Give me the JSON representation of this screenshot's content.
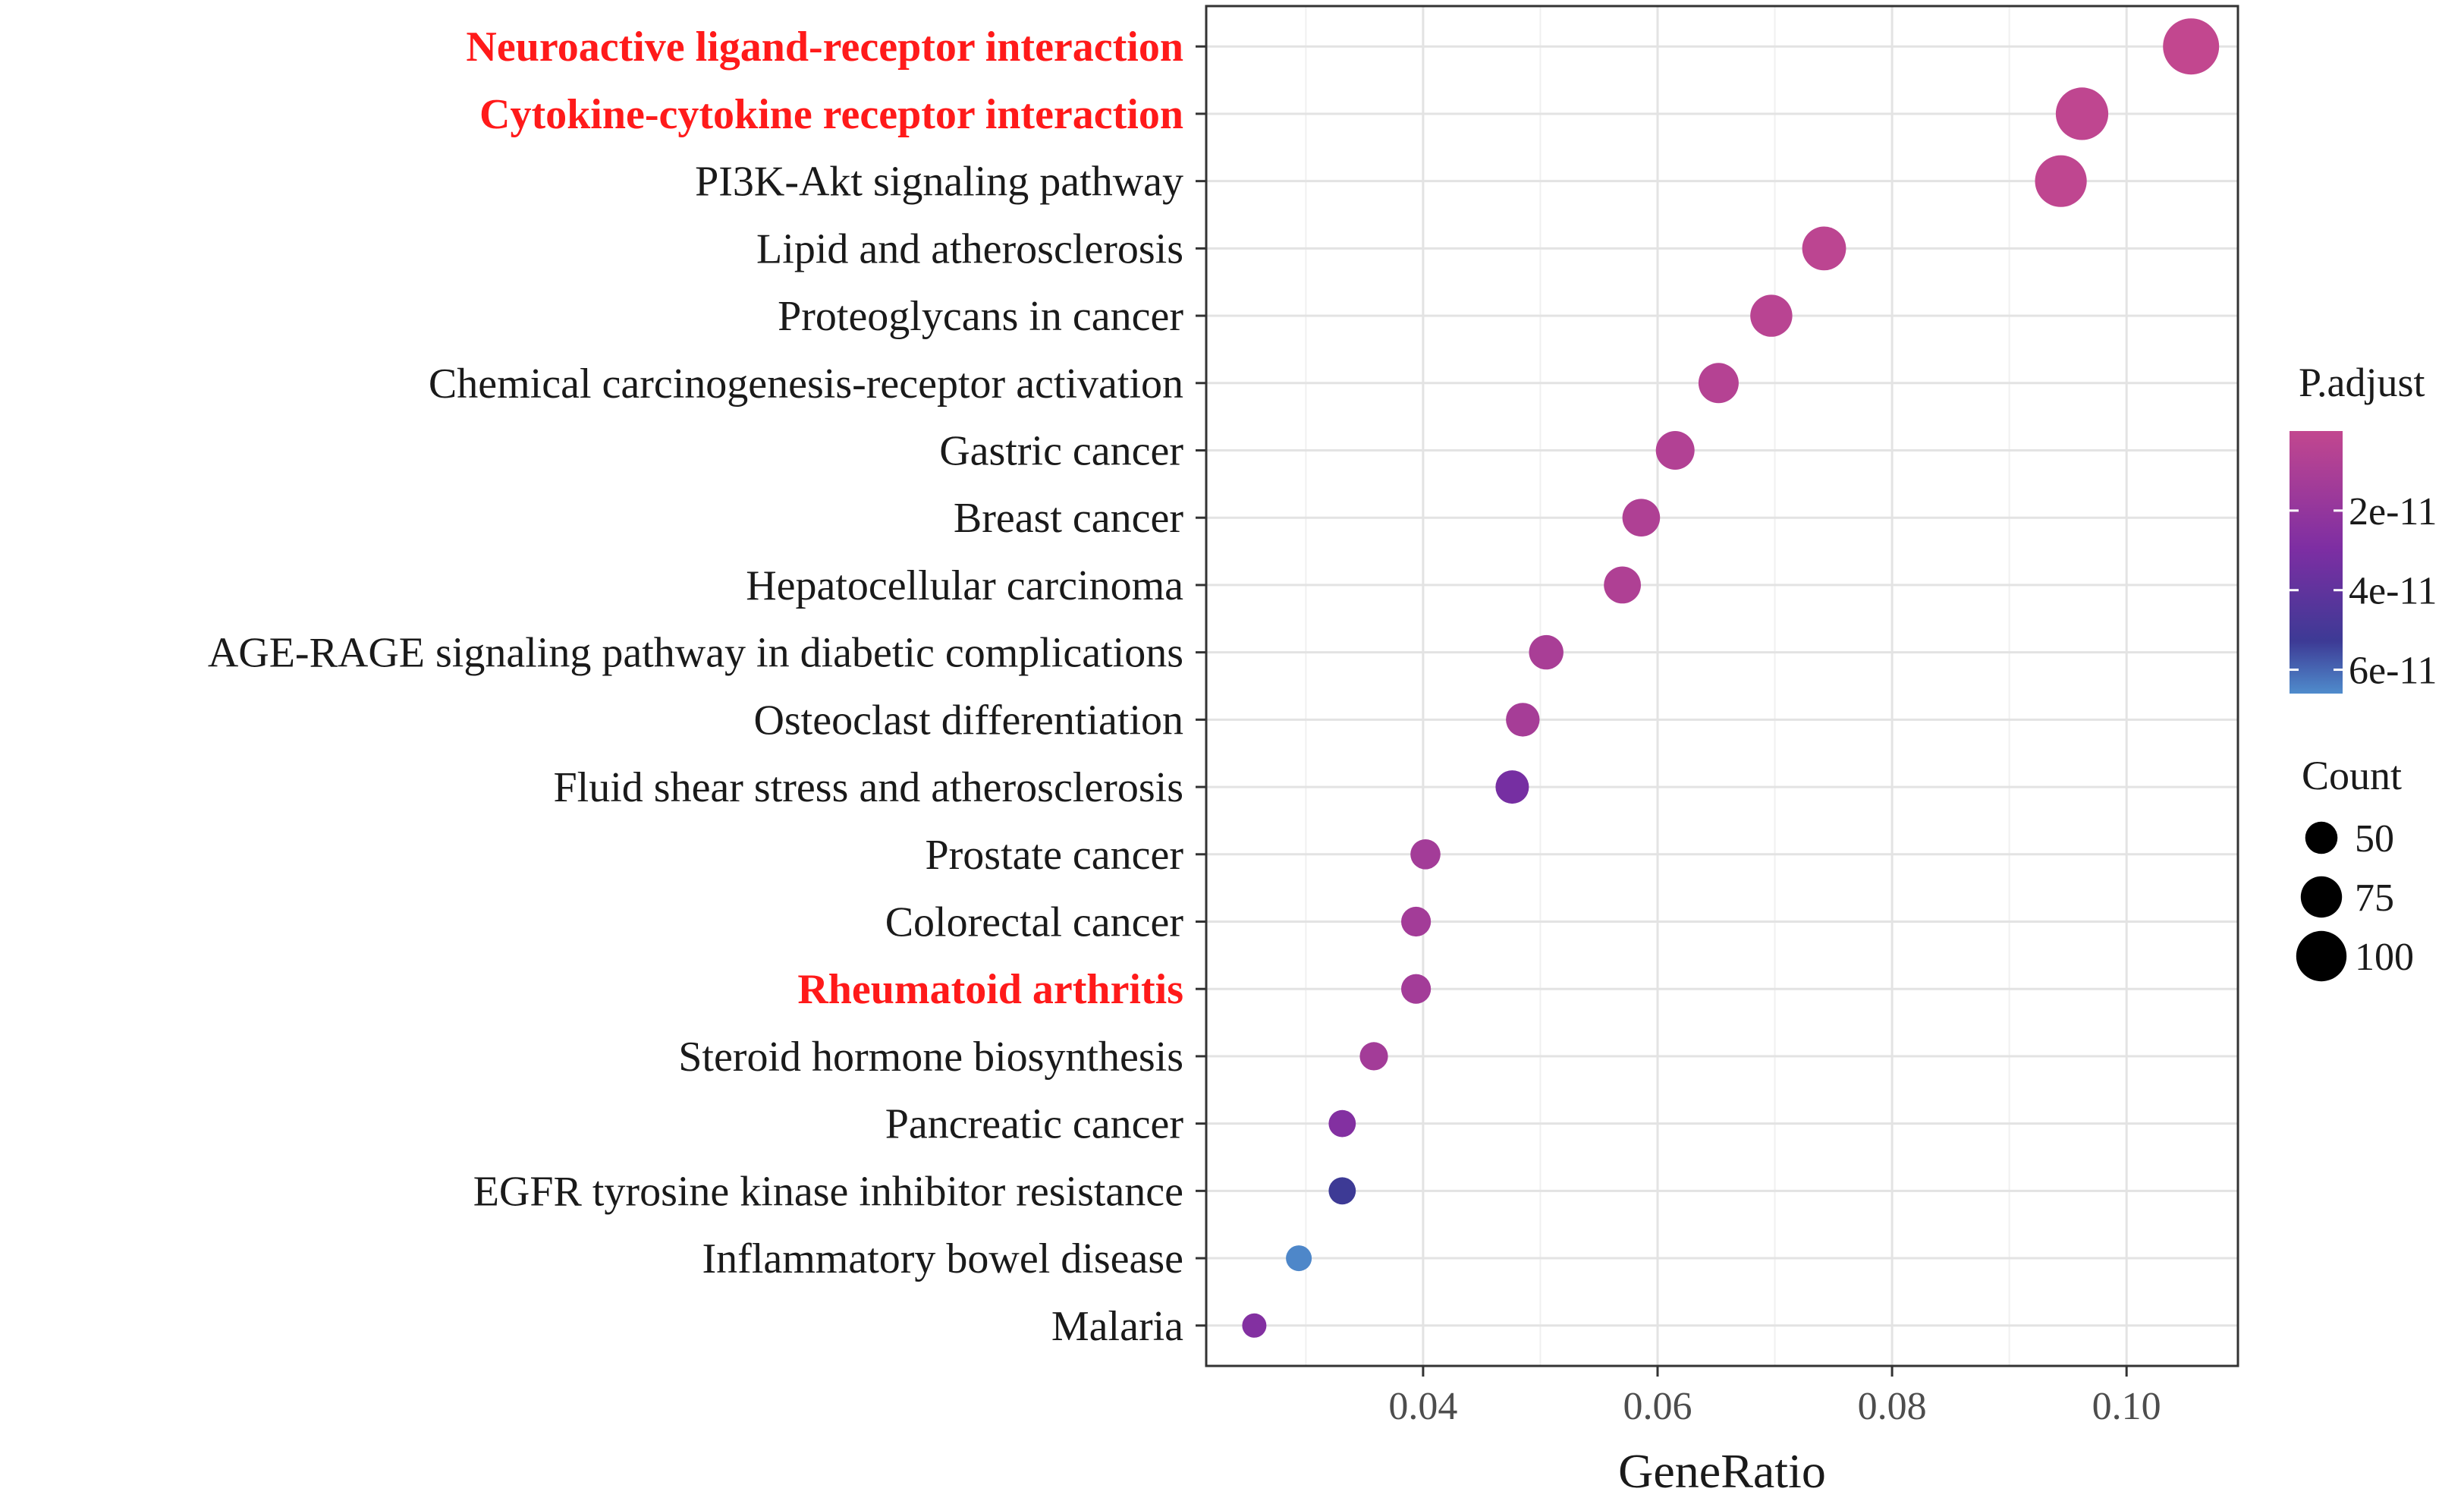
{
  "chart_data": {
    "type": "scatter",
    "subtype": "dot plot (KEGG enrichment)",
    "xlabel": "GeneRatio",
    "ylabel": "",
    "xlim": [
      0.0215,
      0.1095
    ],
    "xticks": [
      0.04,
      0.06,
      0.08,
      0.1
    ],
    "xtick_labels": [
      "0.04",
      "0.06",
      "0.08",
      "0.10"
    ],
    "grid": true,
    "categories": [
      "Neuroactive ligand-receptor interaction",
      "Cytokine-cytokine receptor interaction",
      "PI3K-Akt signaling pathway",
      "Lipid and atherosclerosis",
      "Proteoglycans in cancer",
      "Chemical carcinogenesis-receptor activation",
      "Gastric cancer",
      "Breast cancer",
      "Hepatocellular carcinoma",
      "AGE-RAGE signaling pathway in diabetic complications",
      "Osteoclast differentiation",
      "Fluid shear stress and atherosclerosis",
      "Prostate cancer",
      "Colorectal cancer",
      "Rheumatoid arthritis",
      "Steroid hormone biosynthesis",
      "Pancreatic cancer",
      "EGFR tyrosine kinase inhibitor resistance",
      "Inflammatory bowel disease",
      "Malaria"
    ],
    "highlighted": [
      "Neuroactive ligand-receptor interaction",
      "Cytokine-cytokine receptor interaction",
      "Rheumatoid arthritis"
    ],
    "highlight_color": "#ff1a1a",
    "gene_ratio": [
      0.1055,
      0.0962,
      0.0944,
      0.0742,
      0.0697,
      0.0652,
      0.0615,
      0.0586,
      0.057,
      0.0505,
      0.0485,
      0.0476,
      0.0402,
      0.0394,
      0.0394,
      0.0358,
      0.0331,
      0.0331,
      0.0294,
      0.0256
    ],
    "count": [
      116,
      106,
      104,
      82,
      77,
      72,
      68,
      65,
      63,
      56,
      54,
      53,
      44,
      43,
      43,
      39,
      36,
      36,
      32,
      28
    ],
    "p_adjust": [
      1e-13,
      1e-12,
      1e-12,
      2e-12,
      3e-12,
      4e-12,
      5e-12,
      6e-12,
      6e-12,
      8e-12,
      9e-12,
      2.5e-11,
      1e-11,
      1e-11,
      1e-11,
      1e-11,
      2e-11,
      5e-11,
      6.5e-11,
      2e-11
    ],
    "legend": {
      "color_title": "P.adjust",
      "color_ticks": [
        2e-11,
        4e-11,
        6e-11
      ],
      "color_tick_labels": [
        "2e-11",
        "4e-11",
        "6e-11"
      ],
      "color_range": [
        0,
        6.6e-11
      ],
      "color_low": "#c2478f",
      "color_mid": "#7d2ea3",
      "color_high": "#3d3a95",
      "color_max": "#4f8ccc",
      "size_title": "Count",
      "size_values": [
        50,
        75,
        100
      ],
      "size_labels": [
        "50",
        "75",
        "100"
      ],
      "placement": "right"
    }
  }
}
